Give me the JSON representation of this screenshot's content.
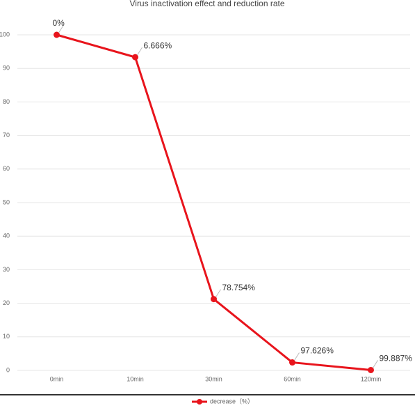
{
  "chart_data": {
    "type": "line",
    "title": "Virus inactivation effect and reduction rate",
    "categories": [
      "0min",
      "10min",
      "30min",
      "60min",
      "120min"
    ],
    "series": [
      {
        "name": "decrease（%）",
        "color": "#e8141c",
        "values": [
          100,
          93.334,
          21.246,
          2.374,
          0.113
        ]
      }
    ],
    "annotations": [
      "0%",
      "6.666%",
      "78.754%",
      "97.626%",
      "99.887%"
    ],
    "ylim": [
      0,
      100
    ],
    "yticks": [
      0,
      10,
      20,
      30,
      40,
      50,
      60,
      70,
      80,
      90,
      100
    ],
    "grid": true,
    "legend": "bottom"
  }
}
